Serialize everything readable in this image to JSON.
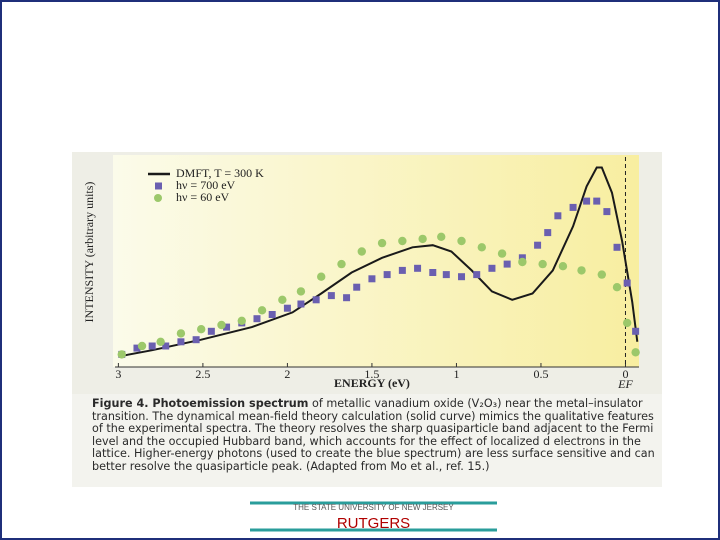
{
  "chart_data": {
    "type": "line",
    "x_label": "ENERGY (eV)",
    "y_label": "INTENSITY (arbitrary units)",
    "xlim": [
      3.02,
      -0.08
    ],
    "ylim": [
      0,
      1
    ],
    "xticks": [
      3,
      2.5,
      2,
      1.5,
      1,
      0.5,
      0
    ],
    "fermi_label": "EF",
    "series": [
      {
        "name": "DMFT, T = 300 K",
        "color": "#1a1a1a",
        "marker": "none",
        "x": [
          3.0,
          2.8,
          2.51,
          2.21,
          1.97,
          1.8,
          1.62,
          1.44,
          1.26,
          1.14,
          1.03,
          0.91,
          0.79,
          0.67,
          0.55,
          0.43,
          0.31,
          0.23,
          0.17,
          0.14,
          0.08,
          0.02,
          -0.04,
          -0.07
        ],
        "values": [
          0.05,
          0.08,
          0.13,
          0.19,
          0.26,
          0.35,
          0.45,
          0.52,
          0.57,
          0.58,
          0.55,
          0.46,
          0.36,
          0.32,
          0.35,
          0.46,
          0.67,
          0.86,
          0.95,
          0.95,
          0.83,
          0.6,
          0.31,
          0.12
        ]
      },
      {
        "name": "hν = 700 eV",
        "color": "#6a5fb0",
        "marker": "square",
        "x": [
          2.98,
          2.89,
          2.8,
          2.72,
          2.63,
          2.54,
          2.45,
          2.36,
          2.27,
          2.18,
          2.09,
          2.0,
          1.92,
          1.83,
          1.74,
          1.65,
          1.59,
          1.5,
          1.41,
          1.32,
          1.23,
          1.14,
          1.06,
          0.97,
          0.88,
          0.79,
          0.7,
          0.61,
          0.52,
          0.46,
          0.4,
          0.31,
          0.23,
          0.17,
          0.11,
          0.05,
          -0.01,
          -0.06
        ],
        "values": [
          0.06,
          0.09,
          0.1,
          0.1,
          0.12,
          0.13,
          0.17,
          0.19,
          0.21,
          0.23,
          0.25,
          0.28,
          0.3,
          0.32,
          0.34,
          0.33,
          0.38,
          0.42,
          0.44,
          0.46,
          0.47,
          0.45,
          0.44,
          0.43,
          0.44,
          0.47,
          0.49,
          0.52,
          0.58,
          0.64,
          0.72,
          0.76,
          0.79,
          0.79,
          0.74,
          0.57,
          0.4,
          0.17
        ]
      },
      {
        "name": "hν = 60 eV",
        "color": "#9cc86a",
        "marker": "circle",
        "x": [
          2.98,
          2.86,
          2.75,
          2.63,
          2.51,
          2.39,
          2.27,
          2.15,
          2.03,
          1.92,
          1.8,
          1.68,
          1.56,
          1.44,
          1.32,
          1.2,
          1.09,
          0.97,
          0.85,
          0.73,
          0.61,
          0.49,
          0.37,
          0.26,
          0.14,
          0.05,
          -0.01,
          -0.06
        ],
        "values": [
          0.06,
          0.1,
          0.12,
          0.16,
          0.18,
          0.2,
          0.22,
          0.27,
          0.32,
          0.36,
          0.43,
          0.49,
          0.55,
          0.59,
          0.6,
          0.61,
          0.62,
          0.6,
          0.57,
          0.54,
          0.5,
          0.49,
          0.48,
          0.46,
          0.44,
          0.38,
          0.21,
          0.07
        ]
      }
    ]
  },
  "caption": {
    "bold": "Figure 4. Photoemission spectrum",
    "text": " of metallic vanadium oxide (V₂O₃) near the metal–insulator transition. The dynamical mean-field theory calculation (solid curve) mimics the qualitative features of the experimental spectra. The theory resolves the sharp quasiparticle band adjacent to the Fermi level and the occupied Hubbard band, which accounts for the effect of localized d electrons in the lattice. Higher-energy photons (used to create the blue spectrum) are less surface sensitive and can better resolve the quasiparticle peak. (Adapted from Mo et al., ref. 15.)"
  },
  "footer": {
    "university": "THE STATE UNIVERSITY OF NEW JERSEY",
    "name": "RUTGERS"
  }
}
